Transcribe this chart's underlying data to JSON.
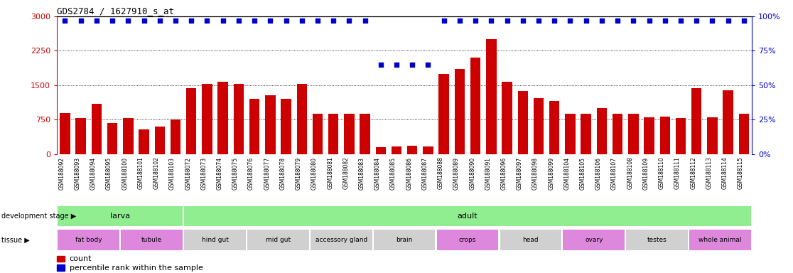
{
  "title": "GDS2784 / 1627910_s_at",
  "samples": [
    "GSM188092",
    "GSM188093",
    "GSM188094",
    "GSM188095",
    "GSM188100",
    "GSM188101",
    "GSM188102",
    "GSM188103",
    "GSM188072",
    "GSM188073",
    "GSM188074",
    "GSM188075",
    "GSM188076",
    "GSM188077",
    "GSM188078",
    "GSM188079",
    "GSM188080",
    "GSM188081",
    "GSM188082",
    "GSM188083",
    "GSM188084",
    "GSM188085",
    "GSM188086",
    "GSM188087",
    "GSM188088",
    "GSM188089",
    "GSM188090",
    "GSM188091",
    "GSM188096",
    "GSM188097",
    "GSM188098",
    "GSM188099",
    "GSM188104",
    "GSM188105",
    "GSM188106",
    "GSM188107",
    "GSM188108",
    "GSM188109",
    "GSM188110",
    "GSM188111",
    "GSM188112",
    "GSM188113",
    "GSM188114",
    "GSM188115"
  ],
  "counts": [
    900,
    780,
    1100,
    680,
    790,
    530,
    600,
    750,
    1430,
    1530,
    1580,
    1530,
    1200,
    1280,
    1200,
    1530,
    870,
    870,
    870,
    870,
    150,
    170,
    175,
    160,
    1750,
    1850,
    2100,
    2500,
    1580,
    1380,
    1220,
    1150,
    870,
    870,
    1000,
    870,
    870,
    800,
    820,
    780,
    1430,
    800,
    1390,
    870
  ],
  "percentiles": [
    97,
    97,
    97,
    97,
    97,
    97,
    97,
    97,
    97,
    97,
    97,
    97,
    97,
    97,
    97,
    97,
    97,
    97,
    97,
    97,
    65,
    65,
    65,
    65,
    97,
    97,
    97,
    97,
    97,
    97,
    97,
    97,
    97,
    97,
    97,
    97,
    97,
    97,
    97,
    97,
    97,
    97,
    97,
    97
  ],
  "development_stages": [
    {
      "label": "larva",
      "start": 0,
      "end": 8,
      "color": "#90ee90"
    },
    {
      "label": "adult",
      "start": 8,
      "end": 44,
      "color": "#90ee90"
    }
  ],
  "tissues": [
    {
      "label": "fat body",
      "start": 0,
      "end": 4,
      "color": "#dd88dd"
    },
    {
      "label": "tubule",
      "start": 4,
      "end": 8,
      "color": "#dd88dd"
    },
    {
      "label": "hind gut",
      "start": 8,
      "end": 12,
      "color": "#d0d0d0"
    },
    {
      "label": "mid gut",
      "start": 12,
      "end": 16,
      "color": "#d0d0d0"
    },
    {
      "label": "accessory gland",
      "start": 16,
      "end": 20,
      "color": "#d0d0d0"
    },
    {
      "label": "brain",
      "start": 20,
      "end": 24,
      "color": "#d0d0d0"
    },
    {
      "label": "crops",
      "start": 24,
      "end": 28,
      "color": "#dd88dd"
    },
    {
      "label": "head",
      "start": 28,
      "end": 32,
      "color": "#d0d0d0"
    },
    {
      "label": "ovary",
      "start": 32,
      "end": 36,
      "color": "#dd88dd"
    },
    {
      "label": "testes",
      "start": 36,
      "end": 40,
      "color": "#d0d0d0"
    },
    {
      "label": "whole animal",
      "start": 40,
      "end": 44,
      "color": "#dd88dd"
    }
  ],
  "bar_color": "#cc0000",
  "dot_color": "#0000cc",
  "left_axis_color": "#cc0000",
  "right_axis_color": "#0000cc",
  "ylim_left": [
    0,
    3000
  ],
  "ylim_right": [
    0,
    100
  ],
  "yticks_left": [
    0,
    750,
    1500,
    2250,
    3000
  ],
  "yticks_right": [
    0,
    25,
    50,
    75,
    100
  ],
  "grid_lines": [
    750,
    1500,
    2250
  ],
  "xtick_bg": "#e0e0e0",
  "background_color": "#ffffff"
}
